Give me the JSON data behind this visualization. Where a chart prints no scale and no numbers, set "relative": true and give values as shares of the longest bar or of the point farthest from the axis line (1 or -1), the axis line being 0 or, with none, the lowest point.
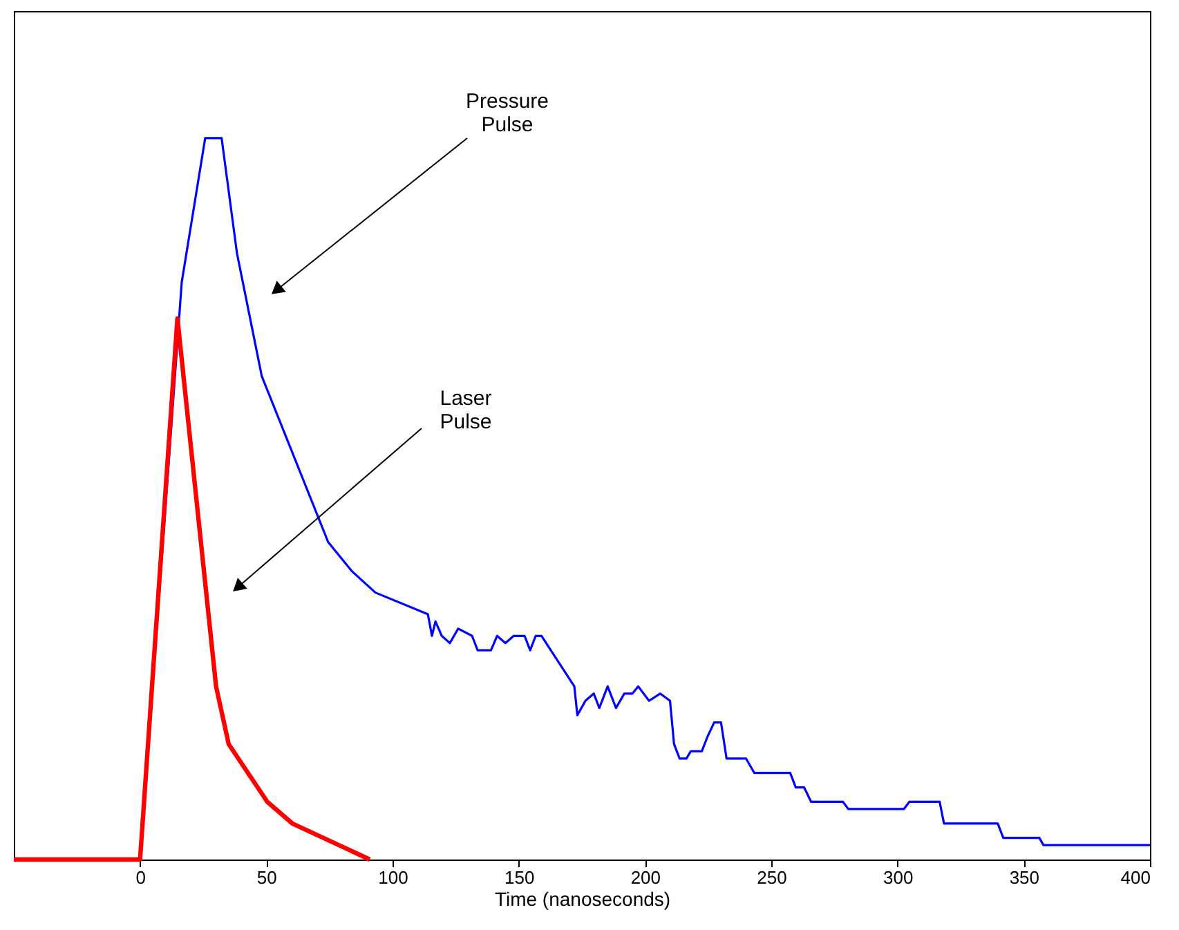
{
  "chart_data": {
    "type": "line",
    "relative": true,
    "xlabel": "Time (nanoseconds)",
    "xlim": [
      -50,
      400
    ],
    "xticks": [
      0,
      50,
      100,
      150,
      200,
      250,
      300,
      350,
      400
    ],
    "grid": false,
    "marker": "none",
    "line_style": "solid",
    "series": [
      {
        "color": "#0000ff",
        "x": [
          -50,
          0,
          16.5,
          25.8,
          27.4,
          32.3,
          38.4,
          48.2,
          74.5,
          83.8,
          93.2,
          114,
          115.6,
          117,
          119.5,
          122.7,
          126,
          131.5,
          133.7,
          139,
          141.4,
          144.7,
          148,
          152.3,
          154.5,
          156.7,
          159,
          172,
          173.2,
          176.4,
          179.7,
          181.9,
          185.2,
          188.5,
          191.8,
          195,
          197.3,
          201.6,
          206,
          209.9,
          211.5,
          213.7,
          216.4,
          218.1,
          222.5,
          224.7,
          227.4,
          230.1,
          232.3,
          240,
          243.3,
          248.2,
          252,
          255.3,
          257.5,
          259.7,
          263,
          265.8,
          278.4,
          280.5,
          302.5,
          304.7,
          316.7,
          318.4,
          339.7,
          341.9,
          356.2,
          357.8,
          400
        ],
        "values": [
          0,
          0,
          0.8,
          1.0,
          1.0,
          1.0,
          0.84,
          0.67,
          0.44,
          0.4,
          0.37,
          0.34,
          0.31,
          0.33,
          0.31,
          0.3,
          0.32,
          0.31,
          0.29,
          0.29,
          0.31,
          0.3,
          0.31,
          0.31,
          0.29,
          0.31,
          0.31,
          0.24,
          0.2,
          0.22,
          0.23,
          0.21,
          0.24,
          0.21,
          0.23,
          0.23,
          0.24,
          0.22,
          0.23,
          0.22,
          0.16,
          0.14,
          0.14,
          0.15,
          0.15,
          0.17,
          0.19,
          0.19,
          0.14,
          0.14,
          0.12,
          0.12,
          0.12,
          0.12,
          0.12,
          0.1,
          0.1,
          0.08,
          0.08,
          0.07,
          0.07,
          0.08,
          0.08,
          0.05,
          0.05,
          0.03,
          0.03,
          0.02,
          0.02
        ]
      },
      {
        "color": "#ff0000",
        "x": [
          -50,
          0,
          14.8,
          30.1,
          35.1,
          50.4,
          60.3,
          91
        ],
        "values": [
          0,
          0,
          0.75,
          0.24,
          0.16,
          0.08,
          0.05,
          0
        ]
      }
    ],
    "annotations": [
      "Pressure Pulse",
      "Laser Pulse"
    ]
  }
}
